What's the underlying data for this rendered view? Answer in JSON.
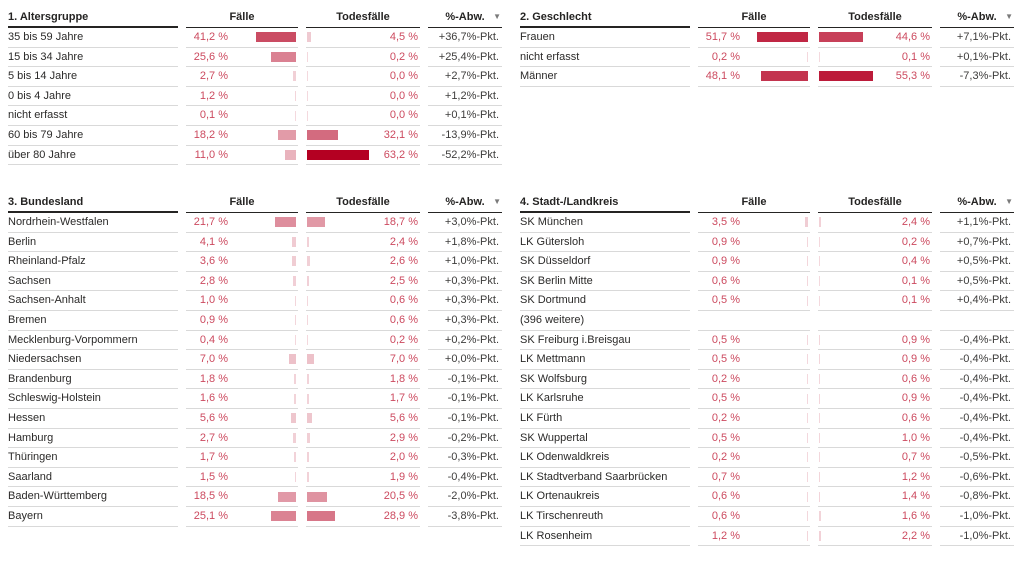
{
  "style": {
    "scale_max": 63.2,
    "bar_color_low": "#f4d9de",
    "bar_color_high": "#b40022",
    "value_text_color": "#cc4a5f",
    "label_color": "#2b2a29",
    "deviation_color": "#3d3c3b",
    "separator_color": "#d9d9d9",
    "header_line_color": "#252423"
  },
  "columns": {
    "cases_label": "Fälle",
    "deaths_label": "Todesfälle",
    "deviation_label": "%-Abw.",
    "sort_icon": "triangle-down",
    "sort_glyph": "▼"
  },
  "tables": [
    {
      "title": "1. Altersgruppe",
      "rows": [
        {
          "label": "35 bis 59 Jahre",
          "cases": 41.2,
          "cases_text": "41,2 %",
          "deaths": 4.5,
          "deaths_text": "4,5 %",
          "deviation": "+36,7%-Pkt."
        },
        {
          "label": "15 bis 34 Jahre",
          "cases": 25.6,
          "cases_text": "25,6 %",
          "deaths": 0.2,
          "deaths_text": "0,2 %",
          "deviation": "+25,4%-Pkt."
        },
        {
          "label": "5 bis 14 Jahre",
          "cases": 2.7,
          "cases_text": "2,7 %",
          "deaths": 0.0,
          "deaths_text": "0,0 %",
          "deviation": "+2,7%-Pkt."
        },
        {
          "label": "0 bis 4 Jahre",
          "cases": 1.2,
          "cases_text": "1,2 %",
          "deaths": 0.0,
          "deaths_text": "0,0 %",
          "deviation": "+1,2%-Pkt."
        },
        {
          "label": "nicht erfasst",
          "cases": 0.1,
          "cases_text": "0,1 %",
          "deaths": 0.0,
          "deaths_text": "0,0 %",
          "deviation": "+0,1%-Pkt."
        },
        {
          "label": "60 bis 79 Jahre",
          "cases": 18.2,
          "cases_text": "18,2 %",
          "deaths": 32.1,
          "deaths_text": "32,1 %",
          "deviation": "-13,9%-Pkt."
        },
        {
          "label": "über 80 Jahre",
          "cases": 11.0,
          "cases_text": "11,0 %",
          "deaths": 63.2,
          "deaths_text": "63,2 %",
          "deviation": "-52,2%-Pkt."
        }
      ]
    },
    {
      "title": "2. Geschlecht",
      "rows": [
        {
          "label": "Frauen",
          "cases": 51.7,
          "cases_text": "51,7 %",
          "deaths": 44.6,
          "deaths_text": "44,6 %",
          "deviation": "+7,1%-Pkt."
        },
        {
          "label": "nicht erfasst",
          "cases": 0.2,
          "cases_text": "0,2 %",
          "deaths": 0.1,
          "deaths_text": "0,1 %",
          "deviation": "+0,1%-Pkt."
        },
        {
          "label": "Männer",
          "cases": 48.1,
          "cases_text": "48,1 %",
          "deaths": 55.3,
          "deaths_text": "55,3 %",
          "deviation": "-7,3%-Pkt."
        }
      ]
    },
    {
      "title": "3. Bundesland",
      "rows": [
        {
          "label": "Nordrhein-Westfalen",
          "cases": 21.7,
          "cases_text": "21,7 %",
          "deaths": 18.7,
          "deaths_text": "18,7 %",
          "deviation": "+3,0%-Pkt."
        },
        {
          "label": "Berlin",
          "cases": 4.1,
          "cases_text": "4,1 %",
          "deaths": 2.4,
          "deaths_text": "2,4 %",
          "deviation": "+1,8%-Pkt."
        },
        {
          "label": "Rheinland-Pfalz",
          "cases": 3.6,
          "cases_text": "3,6 %",
          "deaths": 2.6,
          "deaths_text": "2,6 %",
          "deviation": "+1,0%-Pkt."
        },
        {
          "label": "Sachsen",
          "cases": 2.8,
          "cases_text": "2,8 %",
          "deaths": 2.5,
          "deaths_text": "2,5 %",
          "deviation": "+0,3%-Pkt."
        },
        {
          "label": "Sachsen-Anhalt",
          "cases": 1.0,
          "cases_text": "1,0 %",
          "deaths": 0.6,
          "deaths_text": "0,6 %",
          "deviation": "+0,3%-Pkt."
        },
        {
          "label": "Bremen",
          "cases": 0.9,
          "cases_text": "0,9 %",
          "deaths": 0.6,
          "deaths_text": "0,6 %",
          "deviation": "+0,3%-Pkt."
        },
        {
          "label": "Mecklenburg-Vorpommern",
          "cases": 0.4,
          "cases_text": "0,4 %",
          "deaths": 0.2,
          "deaths_text": "0,2 %",
          "deviation": "+0,2%-Pkt."
        },
        {
          "label": "Niedersachsen",
          "cases": 7.0,
          "cases_text": "7,0 %",
          "deaths": 7.0,
          "deaths_text": "7,0 %",
          "deviation": "+0,0%-Pkt."
        },
        {
          "label": "Brandenburg",
          "cases": 1.8,
          "cases_text": "1,8 %",
          "deaths": 1.8,
          "deaths_text": "1,8 %",
          "deviation": "-0,1%-Pkt."
        },
        {
          "label": "Schleswig-Holstein",
          "cases": 1.6,
          "cases_text": "1,6 %",
          "deaths": 1.7,
          "deaths_text": "1,7 %",
          "deviation": "-0,1%-Pkt."
        },
        {
          "label": "Hessen",
          "cases": 5.6,
          "cases_text": "5,6 %",
          "deaths": 5.6,
          "deaths_text": "5,6 %",
          "deviation": "-0,1%-Pkt."
        },
        {
          "label": "Hamburg",
          "cases": 2.7,
          "cases_text": "2,7 %",
          "deaths": 2.9,
          "deaths_text": "2,9 %",
          "deviation": "-0,2%-Pkt."
        },
        {
          "label": "Thüringen",
          "cases": 1.7,
          "cases_text": "1,7 %",
          "deaths": 2.0,
          "deaths_text": "2,0 %",
          "deviation": "-0,3%-Pkt."
        },
        {
          "label": "Saarland",
          "cases": 1.5,
          "cases_text": "1,5 %",
          "deaths": 1.9,
          "deaths_text": "1,9 %",
          "deviation": "-0,4%-Pkt."
        },
        {
          "label": "Baden-Württemberg",
          "cases": 18.5,
          "cases_text": "18,5 %",
          "deaths": 20.5,
          "deaths_text": "20,5 %",
          "deviation": "-2,0%-Pkt."
        },
        {
          "label": "Bayern",
          "cases": 25.1,
          "cases_text": "25,1 %",
          "deaths": 28.9,
          "deaths_text": "28,9 %",
          "deviation": "-3,8%-Pkt."
        }
      ]
    },
    {
      "title": "4. Stadt-/Landkreis",
      "rows": [
        {
          "label": "SK München",
          "cases": 3.5,
          "cases_text": "3,5 %",
          "deaths": 2.4,
          "deaths_text": "2,4 %",
          "deviation": "+1,1%-Pkt."
        },
        {
          "label": "LK Gütersloh",
          "cases": 0.9,
          "cases_text": "0,9 %",
          "deaths": 0.2,
          "deaths_text": "0,2 %",
          "deviation": "+0,7%-Pkt."
        },
        {
          "label": "SK Düsseldorf",
          "cases": 0.9,
          "cases_text": "0,9 %",
          "deaths": 0.4,
          "deaths_text": "0,4 %",
          "deviation": "+0,5%-Pkt."
        },
        {
          "label": "SK Berlin Mitte",
          "cases": 0.6,
          "cases_text": "0,6 %",
          "deaths": 0.1,
          "deaths_text": "0,1 %",
          "deviation": "+0,5%-Pkt."
        },
        {
          "label": "SK Dortmund",
          "cases": 0.5,
          "cases_text": "0,5 %",
          "deaths": 0.1,
          "deaths_text": "0,1 %",
          "deviation": "+0,4%-Pkt."
        },
        {
          "label": "(396 weitere)",
          "cases": null,
          "cases_text": "",
          "deaths": null,
          "deaths_text": "",
          "deviation": ""
        },
        {
          "label": "SK Freiburg i.Breisgau",
          "cases": 0.5,
          "cases_text": "0,5 %",
          "deaths": 0.9,
          "deaths_text": "0,9 %",
          "deviation": "-0,4%-Pkt."
        },
        {
          "label": "LK Mettmann",
          "cases": 0.5,
          "cases_text": "0,5 %",
          "deaths": 0.9,
          "deaths_text": "0,9 %",
          "deviation": "-0,4%-Pkt."
        },
        {
          "label": "SK Wolfsburg",
          "cases": 0.2,
          "cases_text": "0,2 %",
          "deaths": 0.6,
          "deaths_text": "0,6 %",
          "deviation": "-0,4%-Pkt."
        },
        {
          "label": "LK Karlsruhe",
          "cases": 0.5,
          "cases_text": "0,5 %",
          "deaths": 0.9,
          "deaths_text": "0,9 %",
          "deviation": "-0,4%-Pkt."
        },
        {
          "label": "LK Fürth",
          "cases": 0.2,
          "cases_text": "0,2 %",
          "deaths": 0.6,
          "deaths_text": "0,6 %",
          "deviation": "-0,4%-Pkt."
        },
        {
          "label": "SK Wuppertal",
          "cases": 0.5,
          "cases_text": "0,5 %",
          "deaths": 1.0,
          "deaths_text": "1,0 %",
          "deviation": "-0,4%-Pkt."
        },
        {
          "label": "LK Odenwaldkreis",
          "cases": 0.2,
          "cases_text": "0,2 %",
          "deaths": 0.7,
          "deaths_text": "0,7 %",
          "deviation": "-0,5%-Pkt."
        },
        {
          "label": "LK Stadtverband Saarbrücken",
          "cases": 0.7,
          "cases_text": "0,7 %",
          "deaths": 1.2,
          "deaths_text": "1,2 %",
          "deviation": "-0,6%-Pkt."
        },
        {
          "label": "LK Ortenaukreis",
          "cases": 0.6,
          "cases_text": "0,6 %",
          "deaths": 1.4,
          "deaths_text": "1,4 %",
          "deviation": "-0,8%-Pkt."
        },
        {
          "label": "LK Tirschenreuth",
          "cases": 0.6,
          "cases_text": "0,6 %",
          "deaths": 1.6,
          "deaths_text": "1,6 %",
          "deviation": "-1,0%-Pkt."
        },
        {
          "label": "LK Rosenheim",
          "cases": 1.2,
          "cases_text": "1,2 %",
          "deaths": 2.2,
          "deaths_text": "2,2 %",
          "deviation": "-1,0%-Pkt."
        }
      ]
    }
  ],
  "chart_data": {
    "type": "table",
    "note": "Four mirrored-bar tables: Fälle (cases share) bars anchored right, Todesfälle (deaths share) bars anchored left, colored light-pink to dark-red by value on a shared 0-63.2% scale."
  }
}
